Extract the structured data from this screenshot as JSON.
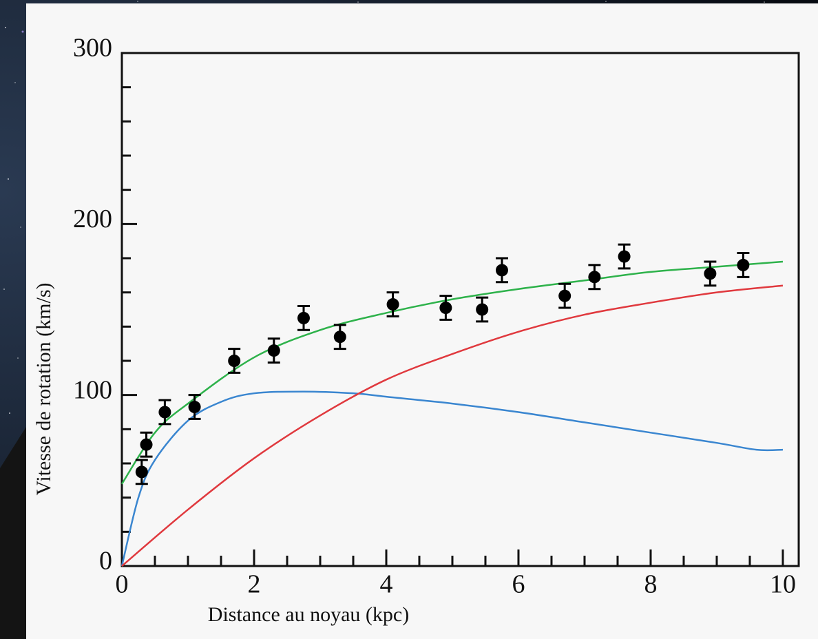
{
  "chart_data": {
    "type": "line",
    "x_label": "Distance au noyau (kpc)",
    "y_label": "Vitesse de rotation (km/s)",
    "xlim": [
      0,
      10.24
    ],
    "ylim": [
      0,
      300
    ],
    "xticks": [
      0,
      2,
      4,
      6,
      8,
      10
    ],
    "yticks": [
      0,
      100,
      200,
      300
    ],
    "xminorticks": [
      0.5,
      1,
      1.5,
      2.5,
      3,
      3.5,
      4.5,
      5,
      5.5,
      6.5,
      7,
      7.5,
      8.5,
      9,
      9.5
    ],
    "yminorticks": [
      20,
      40,
      60,
      80,
      120,
      140,
      160,
      180,
      220,
      240,
      260,
      280
    ],
    "series": [
      {
        "type": "line",
        "color": "#2eb24b",
        "x": [
          0,
          0.5,
          1,
          2,
          3,
          4,
          5,
          6,
          7,
          8,
          9,
          10
        ],
        "values": [
          48,
          78,
          95,
          122,
          138,
          148,
          156,
          162,
          167,
          172,
          175,
          178
        ]
      },
      {
        "type": "line",
        "color": "#3a86d0",
        "x": [
          0,
          0.25,
          0.5,
          1,
          1.5,
          2,
          2.75,
          3.5,
          4,
          5,
          6,
          7,
          8,
          9,
          9.6,
          10
        ],
        "values": [
          0,
          40,
          62,
          85,
          96,
          101,
          102,
          101,
          99,
          95,
          90,
          84,
          78,
          72,
          68,
          68
        ]
      },
      {
        "type": "line",
        "color": "#e0393e",
        "x": [
          0,
          1,
          2,
          3,
          4,
          5,
          6,
          7,
          8,
          9,
          10
        ],
        "values": [
          0,
          33,
          63,
          88,
          109,
          124,
          137,
          147,
          154,
          160,
          164
        ]
      },
      {
        "type": "scatter",
        "color": "#000000",
        "x": [
          0.3,
          0.37,
          0.65,
          1.1,
          1.7,
          2.3,
          2.75,
          3.3,
          4.1,
          4.9,
          5.45,
          5.75,
          6.7,
          7.15,
          7.6,
          8.9,
          9.4
        ],
        "values": [
          55,
          71,
          90,
          93,
          120,
          126,
          145,
          134,
          153,
          151,
          150,
          173,
          158,
          169,
          181,
          171,
          176
        ],
        "errors": [
          7,
          7,
          7,
          7,
          7,
          7,
          7,
          7,
          7,
          7,
          7,
          7,
          7,
          7,
          7,
          7,
          7
        ]
      }
    ]
  }
}
